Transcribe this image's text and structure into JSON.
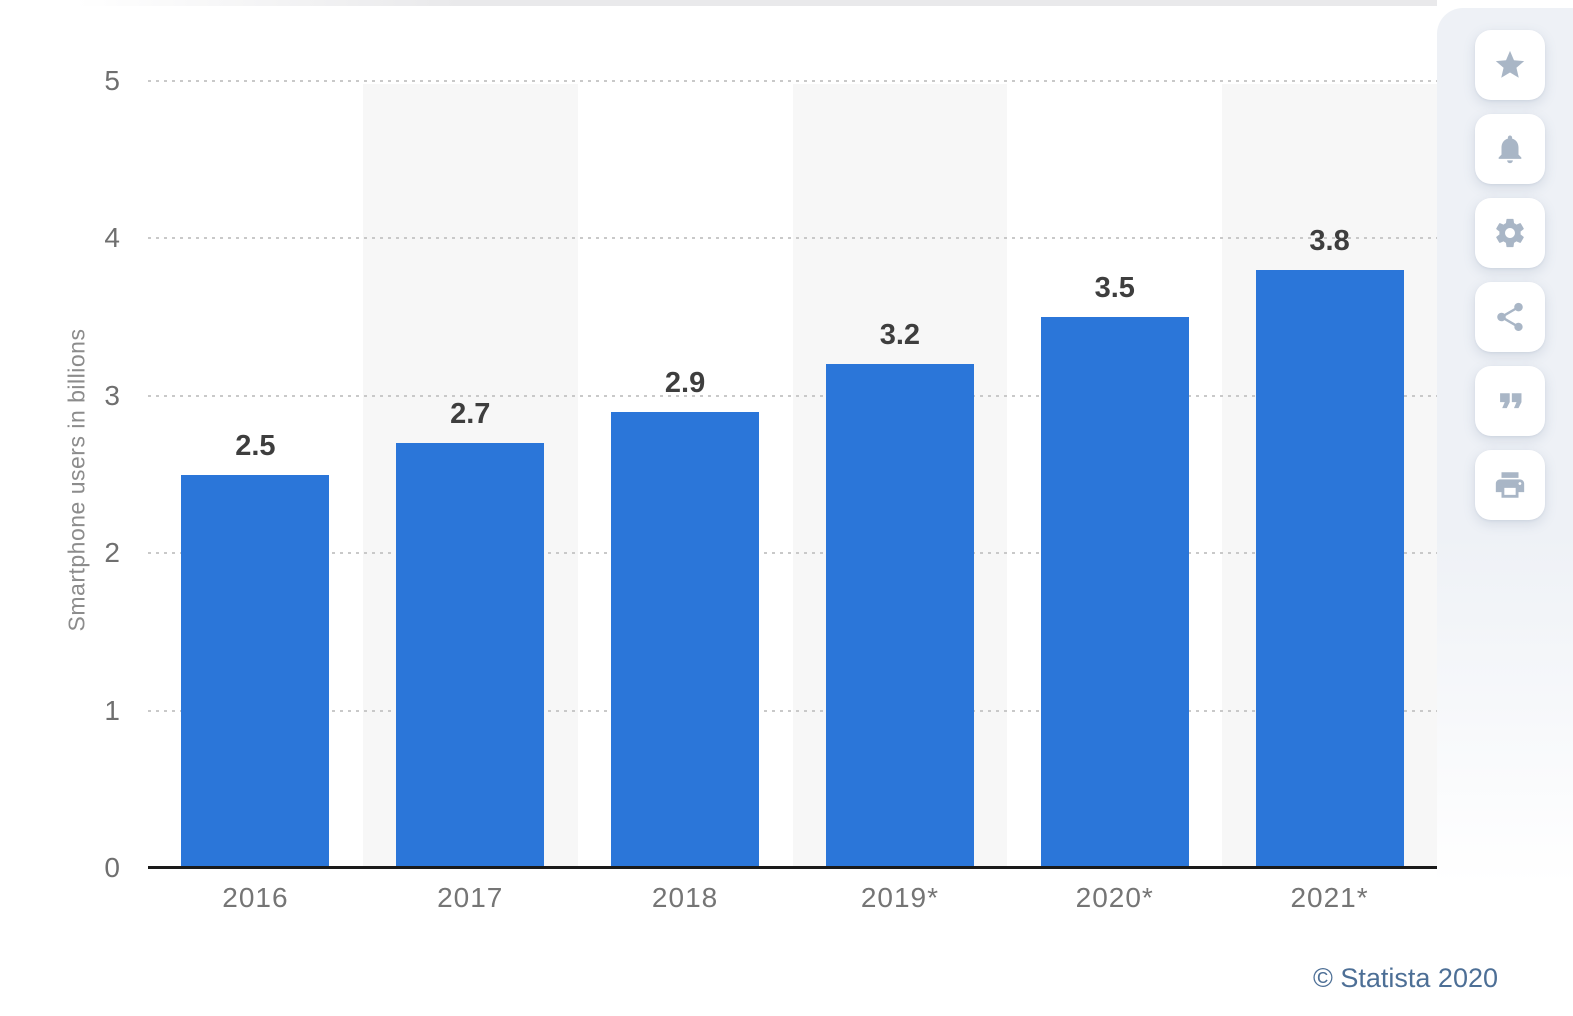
{
  "page": {
    "credit": "© Statista 2020"
  },
  "toolbar": {
    "buttons": [
      {
        "label": "Favorite",
        "icon": "star-icon"
      },
      {
        "label": "Notifications",
        "icon": "bell-icon"
      },
      {
        "label": "Settings",
        "icon": "gear-icon"
      },
      {
        "label": "Share",
        "icon": "share-icon"
      },
      {
        "label": "Cite",
        "icon": "quote-icon"
      },
      {
        "label": "Print",
        "icon": "print-icon"
      }
    ]
  },
  "chart_data": {
    "type": "bar",
    "categories": [
      "2016",
      "2017",
      "2018",
      "2019*",
      "2020*",
      "2021*"
    ],
    "values": [
      2.5,
      2.7,
      2.9,
      3.2,
      3.5,
      3.8
    ],
    "value_labels": [
      "2.5",
      "2.7",
      "2.9",
      "3.2",
      "3.5",
      "3.8"
    ],
    "title": "",
    "xlabel": "",
    "ylabel": "Smartphone users in billions",
    "ylim": [
      0,
      5
    ],
    "yticks": [
      0,
      1,
      2,
      3,
      4,
      5
    ],
    "grid": "horizontal-dotted",
    "legend": "none",
    "stripes": "alternating-vertical-bands"
  },
  "colors": {
    "bar": "#2b76d9",
    "stripe": "#f7f7f7",
    "grid": "#c9c9c9",
    "axis": "#1a1a1a",
    "tick_text": "#6f6f6f",
    "xlabel_text": "#757575",
    "value_text": "#3e3e3e",
    "ylabel_text": "#8c8c8c",
    "credit": "#4d6f96",
    "icon": "#a9b6c6",
    "sidebar_bg": "#eef1f6",
    "button_bg": "#ffffff",
    "topstrip": "#e9e9eb"
  }
}
